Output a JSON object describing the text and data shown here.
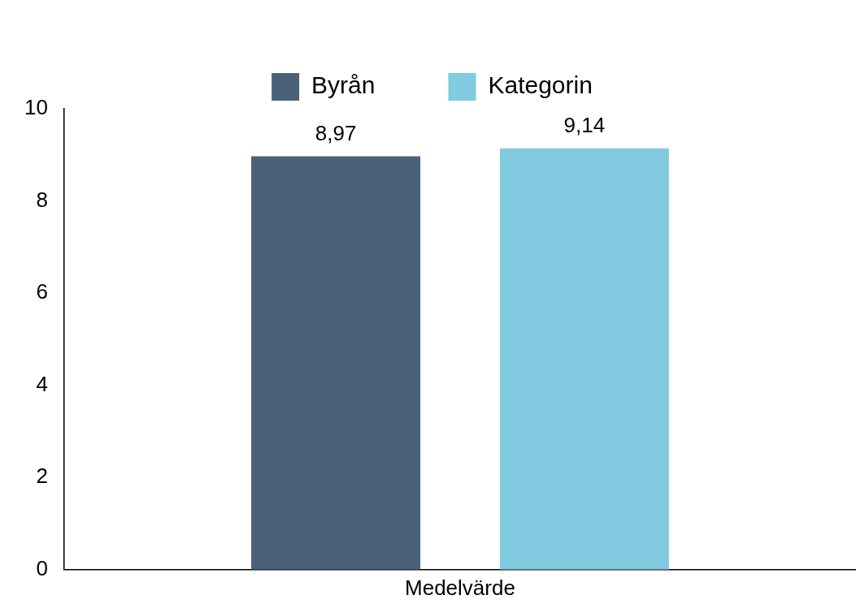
{
  "chart_data": {
    "type": "bar",
    "categories": [
      "Medelvärde"
    ],
    "series": [
      {
        "name": "Byrån",
        "color": "#4b6178",
        "values": [
          8.97
        ],
        "value_labels": [
          "8,97"
        ]
      },
      {
        "name": "Kategorin",
        "color": "#81cadf",
        "values": [
          9.14
        ],
        "value_labels": [
          "9,14"
        ]
      }
    ],
    "ylim": [
      0,
      10
    ],
    "yticks": [
      0,
      2,
      4,
      6,
      8,
      10
    ],
    "grid": false,
    "legend": "top"
  }
}
